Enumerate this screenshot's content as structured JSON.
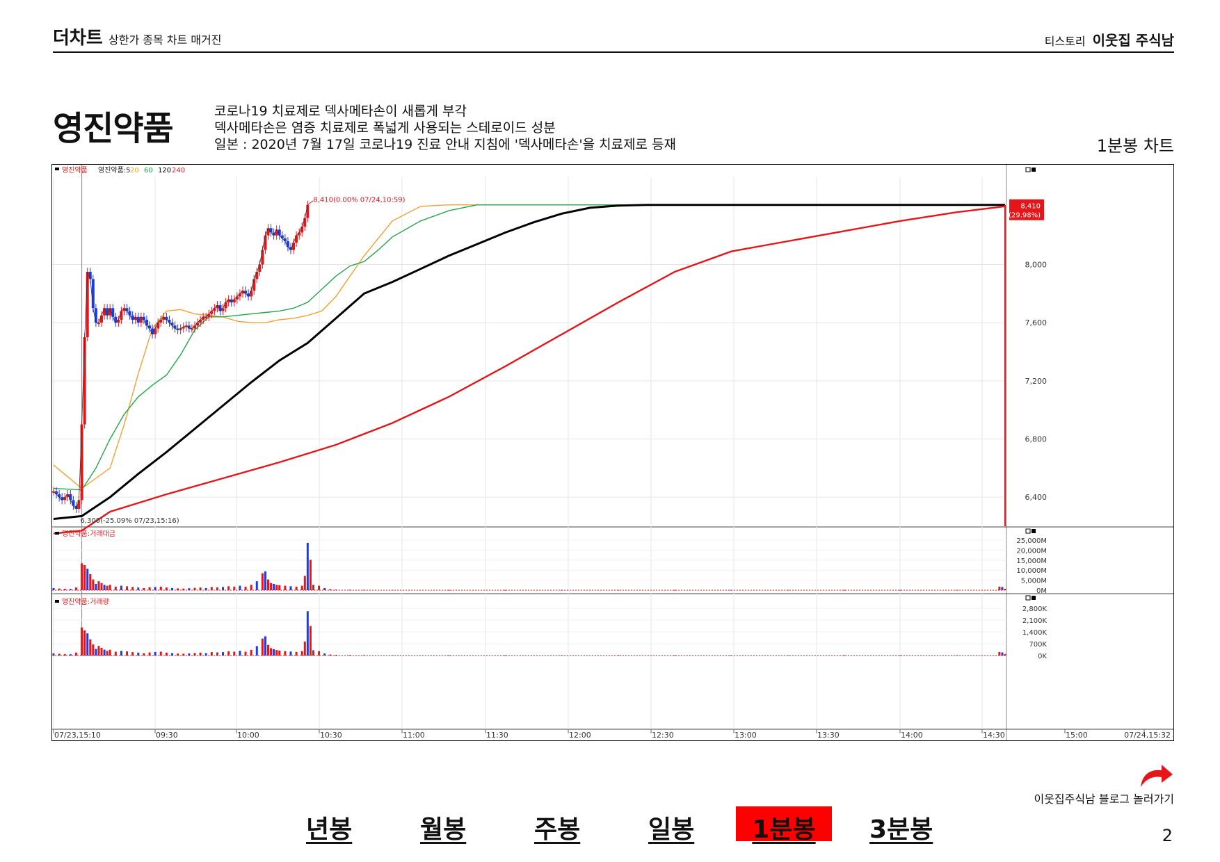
{
  "header": {
    "brand": "더차트",
    "brand_sub": "상한가 종목 차트 매거진",
    "platform": "티스토리",
    "author": "이웃집 주식남"
  },
  "stock": {
    "name": "영진약품",
    "desc": [
      "코로나19 치료제로 덱사메타손이 새롭게 부각",
      "덱사메타손은 염증 치료제로 폭넓게 사용되는 스테로이드 성분",
      "일본 : 2020년 7월 17일 코로나19 진료 안내 지침에 '덱사메타손'을 치료제로 등재"
    ],
    "chart_type_label": "1분봉 차트"
  },
  "chart_data": {
    "type": "line",
    "main_legend": {
      "stock": "영진약품",
      "ma_label": "영진약품:5",
      "periods": [
        "20",
        "60",
        "120",
        "240"
      ]
    },
    "y_ticks": [
      6400,
      6800,
      7200,
      7600,
      8000
    ],
    "y_tick_labels": [
      "6,400",
      "6,800",
      "7,200",
      "7,600",
      "8,000"
    ],
    "ylim": [
      6200,
      8600
    ],
    "x_tick_labels": [
      "07/23,15:10",
      "09:30",
      "10:00",
      "10:30",
      "11:00",
      "11:30",
      "12:00",
      "12:30",
      "13:00",
      "13:30",
      "14:00",
      "14:30",
      "15:00",
      "07/24,15:32"
    ],
    "annotations": {
      "high": "8,410(0.00% 07/24,10:59)",
      "low": "6,300(-25.09% 07/23,15:16)"
    },
    "last_price": {
      "value": "8,410",
      "change": "29.98%"
    },
    "series": [
      {
        "name": "20",
        "color": "#f4a030",
        "points": [
          [
            0,
            6620
          ],
          [
            10,
            6460
          ],
          [
            20,
            6600
          ],
          [
            25,
            6900
          ],
          [
            30,
            7250
          ],
          [
            35,
            7560
          ],
          [
            40,
            7680
          ],
          [
            45,
            7690
          ],
          [
            50,
            7660
          ],
          [
            55,
            7650
          ],
          [
            60,
            7640
          ],
          [
            65,
            7610
          ],
          [
            70,
            7600
          ],
          [
            75,
            7600
          ],
          [
            80,
            7620
          ],
          [
            85,
            7630
          ],
          [
            90,
            7650
          ],
          [
            95,
            7680
          ],
          [
            100,
            7780
          ],
          [
            105,
            7920
          ],
          [
            110,
            8060
          ],
          [
            115,
            8180
          ],
          [
            120,
            8300
          ],
          [
            130,
            8400
          ],
          [
            140,
            8410
          ],
          [
            337,
            8410
          ]
        ]
      },
      {
        "name": "60",
        "color": "#22a64a",
        "points": [
          [
            0,
            6460
          ],
          [
            10,
            6450
          ],
          [
            15,
            6600
          ],
          [
            20,
            6800
          ],
          [
            25,
            6970
          ],
          [
            30,
            7090
          ],
          [
            35,
            7170
          ],
          [
            40,
            7240
          ],
          [
            45,
            7380
          ],
          [
            50,
            7550
          ],
          [
            55,
            7640
          ],
          [
            60,
            7640
          ],
          [
            65,
            7650
          ],
          [
            70,
            7660
          ],
          [
            75,
            7670
          ],
          [
            80,
            7680
          ],
          [
            85,
            7700
          ],
          [
            90,
            7740
          ],
          [
            95,
            7830
          ],
          [
            100,
            7920
          ],
          [
            105,
            7990
          ],
          [
            110,
            8020
          ],
          [
            115,
            8100
          ],
          [
            120,
            8190
          ],
          [
            130,
            8300
          ],
          [
            140,
            8370
          ],
          [
            150,
            8410
          ],
          [
            337,
            8410
          ]
        ]
      },
      {
        "name": "120",
        "color": "#000000",
        "points": [
          [
            0,
            6250
          ],
          [
            10,
            6270
          ],
          [
            20,
            6400
          ],
          [
            30,
            6560
          ],
          [
            40,
            6710
          ],
          [
            50,
            6870
          ],
          [
            60,
            7030
          ],
          [
            70,
            7190
          ],
          [
            80,
            7340
          ],
          [
            90,
            7460
          ],
          [
            100,
            7630
          ],
          [
            110,
            7800
          ],
          [
            120,
            7880
          ],
          [
            130,
            7970
          ],
          [
            140,
            8060
          ],
          [
            150,
            8140
          ],
          [
            160,
            8220
          ],
          [
            170,
            8290
          ],
          [
            180,
            8350
          ],
          [
            190,
            8390
          ],
          [
            200,
            8405
          ],
          [
            210,
            8410
          ],
          [
            337,
            8410
          ]
        ]
      },
      {
        "name": "240",
        "color": "#e4161a",
        "points": [
          [
            0,
            6150
          ],
          [
            10,
            6170
          ],
          [
            20,
            6300
          ],
          [
            40,
            6420
          ],
          [
            60,
            6530
          ],
          [
            80,
            6640
          ],
          [
            100,
            6760
          ],
          [
            120,
            6910
          ],
          [
            140,
            7090
          ],
          [
            160,
            7300
          ],
          [
            180,
            7520
          ],
          [
            200,
            7740
          ],
          [
            220,
            7950
          ],
          [
            240,
            8090
          ],
          [
            260,
            8160
          ],
          [
            280,
            8230
          ],
          [
            300,
            8300
          ],
          [
            320,
            8360
          ],
          [
            337,
            8400
          ]
        ]
      }
    ],
    "price_bars": [
      [
        0,
        6440
      ],
      [
        1,
        6420
      ],
      [
        2,
        6400
      ],
      [
        3,
        6380
      ],
      [
        4,
        6400
      ],
      [
        5,
        6420
      ],
      [
        6,
        6380
      ],
      [
        7,
        6340
      ],
      [
        8,
        6320
      ],
      [
        9,
        6380
      ],
      [
        10,
        6900
      ],
      [
        11,
        7500
      ],
      [
        12,
        7950
      ],
      [
        13,
        7900
      ],
      [
        14,
        7700
      ],
      [
        15,
        7600
      ],
      [
        16,
        7600
      ],
      [
        17,
        7650
      ],
      [
        18,
        7700
      ],
      [
        19,
        7650
      ],
      [
        20,
        7700
      ],
      [
        21,
        7640
      ],
      [
        22,
        7600
      ],
      [
        23,
        7620
      ],
      [
        24,
        7680
      ],
      [
        25,
        7700
      ],
      [
        26,
        7680
      ],
      [
        27,
        7650
      ],
      [
        28,
        7620
      ],
      [
        29,
        7640
      ],
      [
        30,
        7600
      ],
      [
        31,
        7640
      ],
      [
        32,
        7620
      ],
      [
        33,
        7580
      ],
      [
        34,
        7560
      ],
      [
        35,
        7520
      ],
      [
        36,
        7560
      ],
      [
        37,
        7600
      ],
      [
        38,
        7620
      ],
      [
        39,
        7640
      ],
      [
        40,
        7620
      ],
      [
        41,
        7600
      ],
      [
        42,
        7580
      ],
      [
        43,
        7560
      ],
      [
        44,
        7550
      ],
      [
        45,
        7560
      ],
      [
        46,
        7570
      ],
      [
        47,
        7580
      ],
      [
        48,
        7560
      ],
      [
        49,
        7560
      ],
      [
        50,
        7580
      ],
      [
        51,
        7600
      ],
      [
        52,
        7620
      ],
      [
        53,
        7640
      ],
      [
        54,
        7640
      ],
      [
        55,
        7660
      ],
      [
        56,
        7680
      ],
      [
        57,
        7700
      ],
      [
        58,
        7720
      ],
      [
        59,
        7680
      ],
      [
        60,
        7700
      ],
      [
        61,
        7740
      ],
      [
        62,
        7760
      ],
      [
        63,
        7740
      ],
      [
        64,
        7760
      ],
      [
        65,
        7780
      ],
      [
        66,
        7800
      ],
      [
        67,
        7820
      ],
      [
        68,
        7800
      ],
      [
        69,
        7780
      ],
      [
        70,
        7820
      ],
      [
        71,
        7900
      ],
      [
        72,
        7950
      ],
      [
        73,
        8000
      ],
      [
        74,
        8100
      ],
      [
        75,
        8200
      ],
      [
        76,
        8250
      ],
      [
        77,
        8220
      ],
      [
        78,
        8200
      ],
      [
        79,
        8240
      ],
      [
        80,
        8200
      ],
      [
        81,
        8180
      ],
      [
        82,
        8160
      ],
      [
        83,
        8120
      ],
      [
        84,
        8100
      ],
      [
        85,
        8150
      ],
      [
        86,
        8200
      ],
      [
        87,
        8220
      ],
      [
        88,
        8260
      ],
      [
        89,
        8320
      ],
      [
        90,
        8410
      ]
    ],
    "turnover_panel": {
      "label": "영진약품:거래대금",
      "y_tick_labels": [
        "25,000M",
        "20,000M",
        "15,000M",
        "10,000M",
        "5,000M",
        "0M"
      ],
      "ylim": [
        0,
        28000
      ],
      "values_M": [
        [
          0,
          1200
        ],
        [
          2,
          900
        ],
        [
          4,
          800
        ],
        [
          6,
          700
        ],
        [
          8,
          1500
        ],
        [
          10,
          15000
        ],
        [
          11,
          14000
        ],
        [
          12,
          12000
        ],
        [
          13,
          9000
        ],
        [
          14,
          6000
        ],
        [
          15,
          3500
        ],
        [
          16,
          5000
        ],
        [
          17,
          4000
        ],
        [
          18,
          3000
        ],
        [
          19,
          2500
        ],
        [
          20,
          3000
        ],
        [
          22,
          2000
        ],
        [
          24,
          2500
        ],
        [
          26,
          2200
        ],
        [
          28,
          1800
        ],
        [
          30,
          1500
        ],
        [
          32,
          1200
        ],
        [
          34,
          1600
        ],
        [
          36,
          1800
        ],
        [
          38,
          2000
        ],
        [
          40,
          1500
        ],
        [
          42,
          1200
        ],
        [
          44,
          1000
        ],
        [
          46,
          900
        ],
        [
          48,
          1100
        ],
        [
          50,
          1300
        ],
        [
          52,
          1500
        ],
        [
          54,
          1200
        ],
        [
          56,
          1800
        ],
        [
          58,
          1600
        ],
        [
          60,
          1800
        ],
        [
          62,
          2200
        ],
        [
          64,
          2000
        ],
        [
          66,
          2500
        ],
        [
          68,
          2000
        ],
        [
          70,
          3000
        ],
        [
          72,
          5000
        ],
        [
          74,
          9500
        ],
        [
          75,
          10500
        ],
        [
          76,
          6000
        ],
        [
          77,
          4000
        ],
        [
          78,
          3500
        ],
        [
          79,
          3000
        ],
        [
          80,
          2800
        ],
        [
          82,
          2500
        ],
        [
          84,
          2200
        ],
        [
          86,
          2000
        ],
        [
          88,
          2500
        ],
        [
          89,
          8000
        ],
        [
          90,
          26500
        ],
        [
          91,
          17000
        ],
        [
          92,
          3000
        ],
        [
          94,
          2500
        ],
        [
          96,
          1200
        ],
        [
          98,
          600
        ],
        [
          100,
          400
        ],
        [
          105,
          300
        ],
        [
          110,
          250
        ],
        [
          120,
          200
        ],
        [
          140,
          150
        ],
        [
          160,
          150
        ],
        [
          180,
          150
        ],
        [
          200,
          150
        ],
        [
          220,
          150
        ],
        [
          240,
          150
        ],
        [
          260,
          150
        ],
        [
          280,
          150
        ],
        [
          300,
          150
        ],
        [
          320,
          150
        ],
        [
          335,
          2000
        ],
        [
          336,
          1800
        ],
        [
          337,
          800
        ]
      ]
    },
    "volume_panel": {
      "label": "영진약품:거래량",
      "y_tick_labels": [
        "2,800K",
        "2,100K",
        "1,400K",
        "700K",
        "0K"
      ],
      "ylim": [
        0,
        3200
      ],
      "values_K": [
        [
          0,
          150
        ],
        [
          2,
          120
        ],
        [
          4,
          100
        ],
        [
          6,
          90
        ],
        [
          8,
          200
        ],
        [
          10,
          1900
        ],
        [
          11,
          1700
        ],
        [
          12,
          1500
        ],
        [
          13,
          1100
        ],
        [
          14,
          750
        ],
        [
          15,
          450
        ],
        [
          16,
          650
        ],
        [
          17,
          520
        ],
        [
          18,
          400
        ],
        [
          19,
          320
        ],
        [
          20,
          390
        ],
        [
          22,
          260
        ],
        [
          24,
          320
        ],
        [
          26,
          280
        ],
        [
          28,
          230
        ],
        [
          30,
          200
        ],
        [
          32,
          160
        ],
        [
          34,
          210
        ],
        [
          36,
          240
        ],
        [
          38,
          260
        ],
        [
          40,
          200
        ],
        [
          42,
          160
        ],
        [
          44,
          130
        ],
        [
          46,
          120
        ],
        [
          48,
          140
        ],
        [
          50,
          170
        ],
        [
          52,
          200
        ],
        [
          54,
          160
        ],
        [
          56,
          230
        ],
        [
          58,
          210
        ],
        [
          60,
          230
        ],
        [
          62,
          290
        ],
        [
          64,
          260
        ],
        [
          66,
          320
        ],
        [
          68,
          260
        ],
        [
          70,
          380
        ],
        [
          72,
          640
        ],
        [
          74,
          1150
        ],
        [
          75,
          1300
        ],
        [
          76,
          720
        ],
        [
          77,
          500
        ],
        [
          78,
          430
        ],
        [
          79,
          370
        ],
        [
          80,
          340
        ],
        [
          82,
          300
        ],
        [
          84,
          270
        ],
        [
          86,
          240
        ],
        [
          88,
          300
        ],
        [
          89,
          950
        ],
        [
          90,
          3000
        ],
        [
          91,
          2000
        ],
        [
          92,
          360
        ],
        [
          94,
          300
        ],
        [
          96,
          140
        ],
        [
          98,
          70
        ],
        [
          100,
          50
        ],
        [
          105,
          40
        ],
        [
          110,
          30
        ],
        [
          120,
          25
        ],
        [
          140,
          20
        ],
        [
          160,
          20
        ],
        [
          180,
          20
        ],
        [
          200,
          20
        ],
        [
          220,
          20
        ],
        [
          240,
          20
        ],
        [
          260,
          20
        ],
        [
          280,
          20
        ],
        [
          300,
          20
        ],
        [
          320,
          20
        ],
        [
          335,
          240
        ],
        [
          336,
          210
        ],
        [
          337,
          100
        ]
      ]
    }
  },
  "blog_link": "이웃집주식남 블로그 놀러가기",
  "nav": [
    "년봉",
    "월봉",
    "주봉",
    "일봉",
    "1분봉",
    "3분봉"
  ],
  "page_number": "2"
}
